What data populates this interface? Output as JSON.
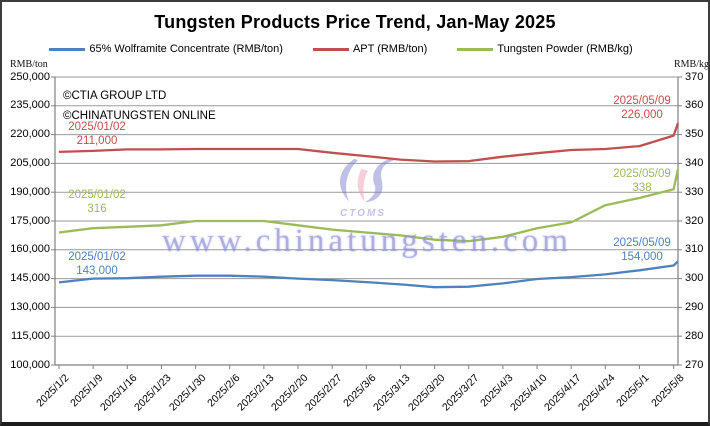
{
  "title": "Tungsten Products Price Trend, Jan-May 2025",
  "copyright": {
    "line1": "©CTIA GROUP LTD",
    "line2": "©CHINATUNGSTEN ONLINE"
  },
  "watermark": {
    "url": "www.chinatungsten.com",
    "logo_text": "CTOMS"
  },
  "colors": {
    "wolframite": "#4F81BD",
    "apt": "#C0504D",
    "powder": "#9BBB59",
    "gridline": "#9a9a9a",
    "axis": "#808080"
  },
  "chart_data": {
    "type": "line",
    "title": "Tungsten Products Price Trend, Jan-May 2025",
    "grid": true,
    "legend_position": "top",
    "x_tick_labels": [
      "2025/1/2",
      "2025/1/9",
      "2025/1/16",
      "2025/1/23",
      "2025/1/30",
      "2025/2/6",
      "2025/2/13",
      "2025/2/20",
      "2025/2/27",
      "2025/3/6",
      "2025/3/13",
      "2025/3/20",
      "2025/3/27",
      "2025/4/3",
      "2025/4/10",
      "2025/4/17",
      "2025/4/24",
      "2025/5/1",
      "2025/5/8"
    ],
    "extra_final_date": "2025/5/9",
    "left_axis": {
      "label": "RMB/ton",
      "min": 100000,
      "max": 250000,
      "step": 15000
    },
    "right_axis": {
      "label": "RMB/kg",
      "min": 270,
      "max": 370,
      "step": 10
    },
    "series": [
      {
        "name": "65% Wolframite Concentrate (RMB/ton)",
        "axis": "left",
        "color": "#4F81BD",
        "values": [
          143000,
          145000,
          145200,
          146000,
          146500,
          146500,
          146000,
          145000,
          144200,
          143200,
          142000,
          140500,
          140800,
          142500,
          144800,
          145800,
          147200,
          149300,
          151800,
          154000
        ]
      },
      {
        "name": "APT (RMB/ton)",
        "axis": "left",
        "color": "#C0504D",
        "values": [
          211000,
          211500,
          212300,
          212300,
          212500,
          212500,
          212500,
          212500,
          210500,
          208800,
          207000,
          206000,
          206200,
          208500,
          210300,
          212000,
          212500,
          214000,
          219500,
          226000
        ]
      },
      {
        "name": "Tungsten Powder (RMB/kg)",
        "axis": "right",
        "color": "#9BBB59",
        "values": [
          316,
          317.5,
          318,
          318.5,
          320,
          320,
          320,
          318.5,
          317,
          316,
          315,
          313.5,
          313,
          314.5,
          317.5,
          319.5,
          325.5,
          328,
          331,
          338
        ]
      }
    ],
    "annotations": [
      {
        "id": "apt-start",
        "lines": [
          "2025/01/02",
          "211,000"
        ],
        "color": "#C0504D"
      },
      {
        "id": "powder-start",
        "lines": [
          "2025/01/02",
          "316"
        ],
        "color": "#9BBB59"
      },
      {
        "id": "wolframite-start",
        "lines": [
          "2025/01/02",
          "143,000"
        ],
        "color": "#4F81BD"
      },
      {
        "id": "apt-end",
        "lines": [
          "2025/05/09",
          "226,000"
        ],
        "color": "#C0504D"
      },
      {
        "id": "powder-end",
        "lines": [
          "2025/05/09",
          "338"
        ],
        "color": "#9BBB59"
      },
      {
        "id": "wolframite-end",
        "lines": [
          "2025/05/09",
          "154,000"
        ],
        "color": "#4F81BD"
      }
    ]
  }
}
